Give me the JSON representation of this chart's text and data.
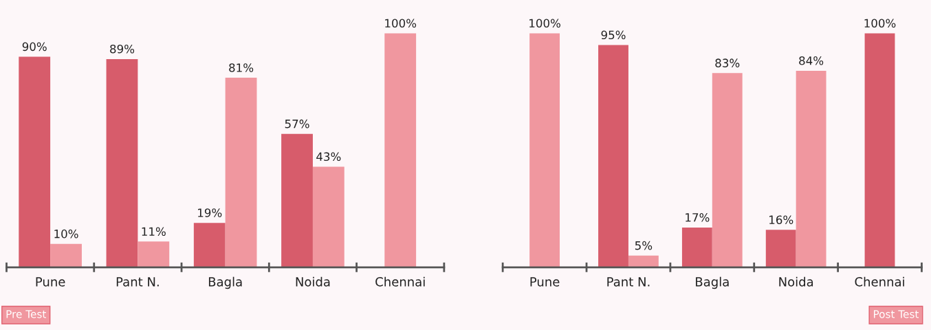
{
  "chart_data": [
    {
      "type": "bar",
      "title": "Pre Test",
      "categories": [
        "Pune",
        "Pant N.",
        "Bagla",
        "Noida",
        "Chennai"
      ],
      "legend": false,
      "grid": false,
      "series": [
        {
          "color": "#d75c6b",
          "values": [
            90,
            89,
            19,
            57,
            null
          ],
          "value_labels": [
            "90%",
            "89%",
            "19%",
            "57%",
            null
          ]
        },
        {
          "color": "#f0979f",
          "values": [
            10,
            11,
            81,
            43,
            100
          ],
          "value_labels": [
            "10%",
            "11%",
            "81%",
            "43%",
            "100%"
          ]
        }
      ]
    },
    {
      "type": "bar",
      "title": "Post Test",
      "categories": [
        "Pune",
        "Pant N.",
        "Bagla",
        "Noida",
        "Chennai"
      ],
      "legend": false,
      "grid": false,
      "series": [
        {
          "color": "#d75c6b",
          "values": [
            null,
            95,
            17,
            16,
            100
          ],
          "value_labels": [
            null,
            "95%",
            "17%",
            "16%",
            "100%"
          ]
        },
        {
          "color": "#f0979f",
          "values": [
            100,
            5,
            83,
            84,
            null
          ],
          "value_labels": [
            "100%",
            "5%",
            "83%",
            "84%",
            null
          ]
        }
      ]
    }
  ]
}
